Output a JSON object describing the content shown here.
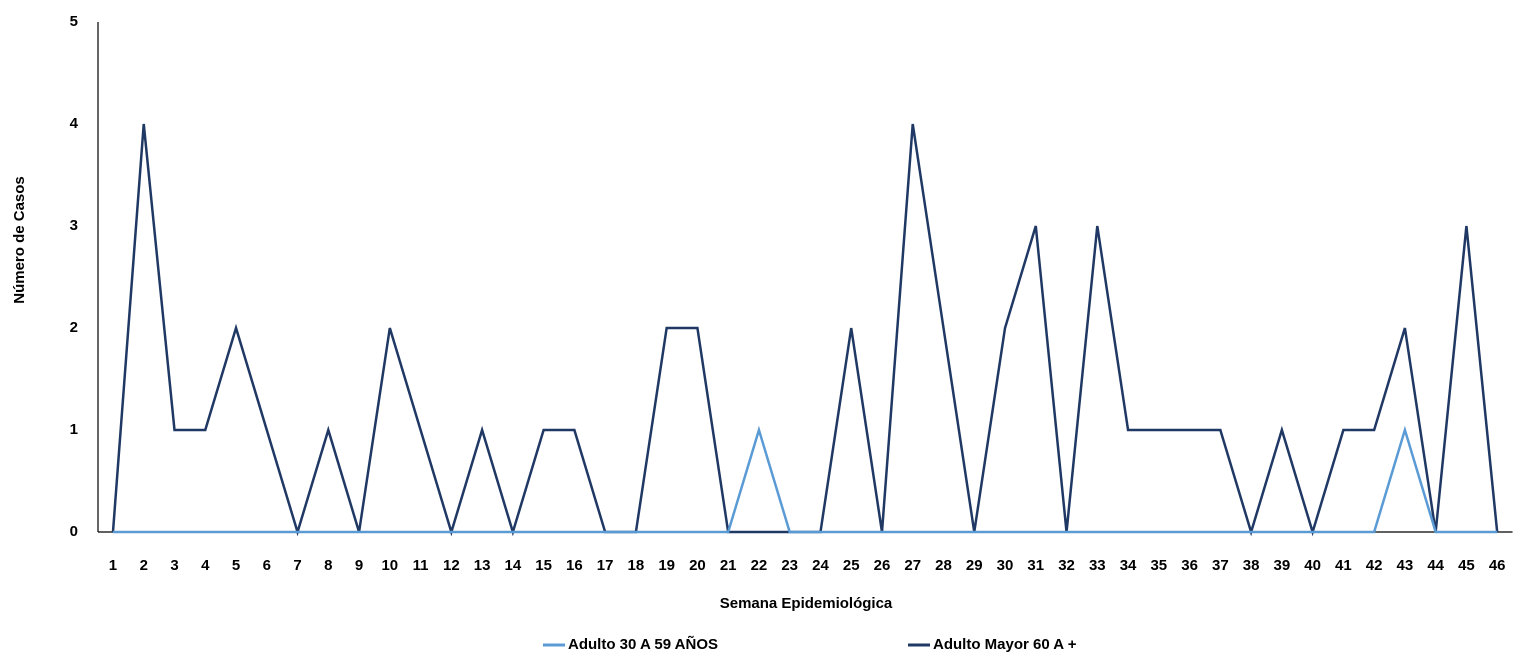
{
  "chart_data": {
    "type": "line",
    "x_label": "Semana Epidemiológica",
    "y_label": "Número de Casos",
    "categories": [
      "1",
      "2",
      "3",
      "4",
      "5",
      "6",
      "7",
      "8",
      "9",
      "10",
      "11",
      "12",
      "13",
      "14",
      "15",
      "16",
      "17",
      "18",
      "19",
      "20",
      "21",
      "22",
      "23",
      "24",
      "25",
      "26",
      "27",
      "28",
      "29",
      "30",
      "31",
      "32",
      "33",
      "34",
      "35",
      "36",
      "37",
      "38",
      "39",
      "40",
      "41",
      "42",
      "43",
      "44",
      "45",
      "46"
    ],
    "series": [
      {
        "name": "Adulto 30 A 59 AÑOS",
        "color": "#5b9bd5",
        "values": [
          0,
          0,
          0,
          0,
          0,
          0,
          0,
          0,
          0,
          0,
          0,
          0,
          0,
          0,
          0,
          0,
          0,
          0,
          0,
          0,
          0,
          1,
          0,
          0,
          0,
          0,
          0,
          0,
          0,
          0,
          0,
          0,
          0,
          0,
          0,
          0,
          0,
          0,
          0,
          0,
          0,
          0,
          1,
          0,
          0,
          0
        ]
      },
      {
        "name": "Adulto Mayor 60 A +",
        "color": "#1f3864",
        "values": [
          0,
          4,
          1,
          1,
          2,
          1,
          0,
          1,
          0,
          2,
          1,
          0,
          1,
          0,
          1,
          1,
          0,
          0,
          2,
          2,
          0,
          0,
          0,
          0,
          2,
          0,
          4,
          2,
          0,
          2,
          3,
          0,
          3,
          1,
          1,
          1,
          1,
          0,
          1,
          0,
          1,
          1,
          2,
          0,
          3,
          0
        ]
      }
    ],
    "ylim": [
      0,
      5
    ],
    "yticks": [
      0,
      1,
      2,
      3,
      4,
      5
    ],
    "grid": false
  }
}
